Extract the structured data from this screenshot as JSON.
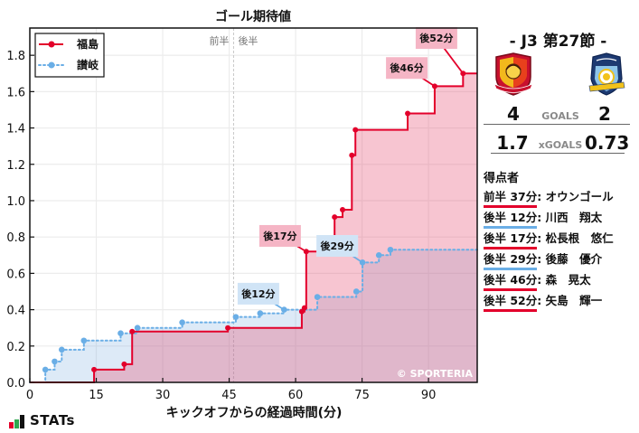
{
  "chart_data": {
    "type": "line",
    "subtype": "step",
    "title": "ゴール期待値",
    "xlabel": "キックオフからの経過時間(分)",
    "ylabel": "",
    "xlim": [
      0,
      101
    ],
    "ylim": [
      0,
      1.95
    ],
    "xticks": [
      0,
      15,
      30,
      45,
      60,
      75,
      90
    ],
    "xtick_labels": [
      "0",
      "15",
      "30",
      "45",
      "60",
      "75",
      "90"
    ],
    "yticks": [
      0.0,
      0.2,
      0.4,
      0.6,
      0.8,
      1.0,
      1.2,
      1.4,
      1.6,
      1.8
    ],
    "ytick_labels": [
      "0.0",
      "0.2",
      "0.4",
      "0.6",
      "0.8",
      "1.0",
      "1.2",
      "1.4",
      "1.6",
      "1.8"
    ],
    "grid": true,
    "legend_position": "upper left",
    "halftime": {
      "x": 46,
      "label_first": "前半",
      "label_second": "後半"
    },
    "watermark": "© SPORTERIA",
    "series": [
      {
        "name": "福島",
        "color": "#e3002b",
        "fill": "rgba(232,80,115,0.33)",
        "style": "solid",
        "x": [
          14.5,
          21.3,
          23.1,
          44.7,
          61.4,
          62.0,
          62.4,
          68.8,
          70.6,
          72.7,
          73.5,
          85.3,
          91.4,
          97.8
        ],
        "y": [
          0.07,
          0.1,
          0.28,
          0.3,
          0.39,
          0.41,
          0.72,
          0.91,
          0.95,
          1.25,
          1.39,
          1.48,
          1.63,
          1.7
        ]
      },
      {
        "name": "讃岐",
        "color": "#6aaee6",
        "fill": "rgba(100,160,220,0.22)",
        "style": "dotted",
        "x": [
          3.5,
          5.6,
          7.2,
          12.2,
          20.5,
          24.3,
          34.4,
          46.5,
          52.0,
          57.4,
          64.9,
          73.7,
          75.1,
          78.8,
          81.4
        ],
        "y": [
          0.07,
          0.115,
          0.18,
          0.23,
          0.27,
          0.3,
          0.33,
          0.36,
          0.38,
          0.4,
          0.47,
          0.5,
          0.66,
          0.7,
          0.73
        ]
      }
    ],
    "annotations": [
      {
        "label": "後12分",
        "series": 1,
        "target": [
          57.4,
          0.4
        ],
        "box_center": [
          51.6,
          0.488
        ],
        "box_color": "rgba(150,195,235,0.45)",
        "line_color": "#6aaee6"
      },
      {
        "label": "後17分",
        "series": 0,
        "target": [
          62.4,
          0.72
        ],
        "box_center": [
          56.5,
          0.806
        ],
        "box_color": "rgba(236,120,150,0.55)",
        "line_color": "#e3002b"
      },
      {
        "label": "後29分",
        "series": 1,
        "target": [
          75.1,
          0.66
        ],
        "box_center": [
          69.4,
          0.751
        ],
        "box_color": "rgba(150,195,235,0.45)",
        "line_color": "#6aaee6"
      },
      {
        "label": "後46分",
        "series": 0,
        "target": [
          91.4,
          1.63
        ],
        "box_center": [
          85.1,
          1.73
        ],
        "box_color": "rgba(236,120,150,0.55)",
        "line_color": "#e3002b"
      },
      {
        "label": "後52分",
        "series": 0,
        "target": [
          97.8,
          1.7
        ],
        "box_center": [
          91.8,
          1.895
        ],
        "box_color": "rgba(236,120,150,0.55)",
        "line_color": "#e3002b"
      }
    ]
  },
  "chart": {
    "title": "ゴール期待値",
    "xlabel": "キックオフからの経過時間(分)"
  },
  "brand": {
    "stats_logo_text": "STATs",
    "bar_colors": [
      "#e3002b",
      "#2fa84f",
      "#111111"
    ]
  },
  "match": {
    "header": "-  J3 第27節  -",
    "home_team": "福島",
    "away_team": "讃岐",
    "goals_label": "GOALS",
    "home_goals": "4",
    "away_goals": "2",
    "xgoals_label": "xGOALS",
    "home_xg": "1.7",
    "away_xg": "0.73"
  },
  "teams": {
    "home": {
      "color": "#e3002b"
    },
    "away": {
      "color": "#6aaee6"
    }
  },
  "scorers": {
    "title": "得点者",
    "items": [
      {
        "time": "前半 37分",
        "sep": ": ",
        "name": "オウンゴール",
        "team": "home"
      },
      {
        "time": "後半 12分",
        "sep": ": ",
        "name": "川西　翔太",
        "team": "away"
      },
      {
        "time": "後半 17分",
        "sep": ": ",
        "name": "松長根　悠仁",
        "team": "home"
      },
      {
        "time": "後半 29分",
        "sep": ": ",
        "name": "後藤　優介",
        "team": "away"
      },
      {
        "time": "後半 46分",
        "sep": ": ",
        "name": "森　晃太",
        "team": "home"
      },
      {
        "time": "後半 52分",
        "sep": ": ",
        "name": "矢島　輝一",
        "team": "home"
      }
    ]
  }
}
